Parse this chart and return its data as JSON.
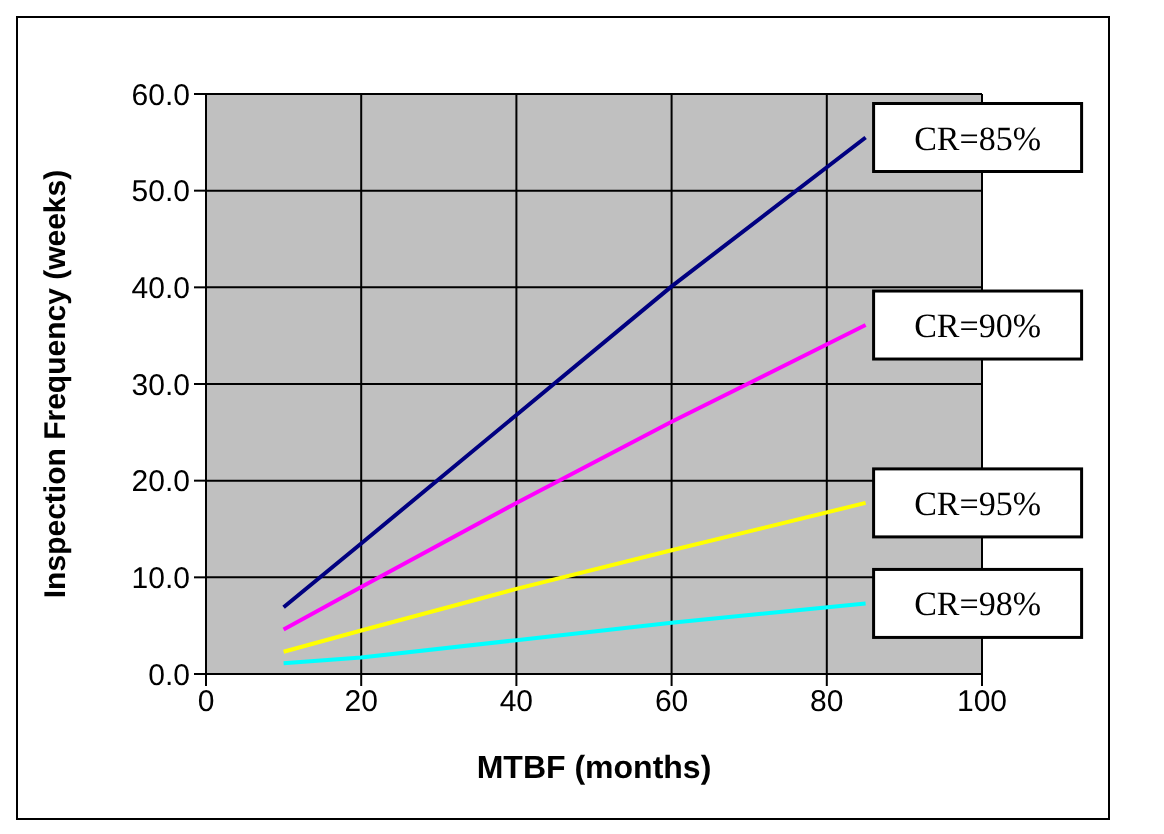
{
  "chart_data": {
    "type": "line",
    "xlabel": "MTBF (months)",
    "ylabel": "Inspection Frequency (weeks)",
    "x": [
      10,
      20,
      40,
      60,
      85
    ],
    "series": [
      {
        "name": "CR=85%",
        "color": "#000080",
        "values": [
          6.9,
          13.5,
          26.8,
          40.1,
          55.5
        ]
      },
      {
        "name": "CR=90%",
        "color": "#ff00ff",
        "values": [
          4.6,
          9.0,
          17.7,
          26.1,
          36.1
        ]
      },
      {
        "name": "CR=95%",
        "color": "#ffff00",
        "values": [
          2.3,
          4.5,
          8.8,
          12.8,
          17.7
        ]
      },
      {
        "name": "CR=98%",
        "color": "#00ffff",
        "values": [
          1.1,
          1.7,
          3.5,
          5.3,
          7.3
        ]
      }
    ],
    "xlim": [
      0,
      100
    ],
    "xticks": [
      0,
      20,
      40,
      60,
      80,
      100
    ],
    "ylim": [
      0,
      60
    ],
    "yticks": [
      {
        "value": 0,
        "label": "0.0"
      },
      {
        "value": 10,
        "label": "10.0"
      },
      {
        "value": 20,
        "label": "20.0"
      },
      {
        "value": 30,
        "label": "30.0"
      },
      {
        "value": 40,
        "label": "40.0"
      },
      {
        "value": 50,
        "label": "50.0"
      },
      {
        "value": 60,
        "label": "60.0"
      }
    ],
    "grid": true,
    "marker": "none",
    "line_style": "solid"
  }
}
